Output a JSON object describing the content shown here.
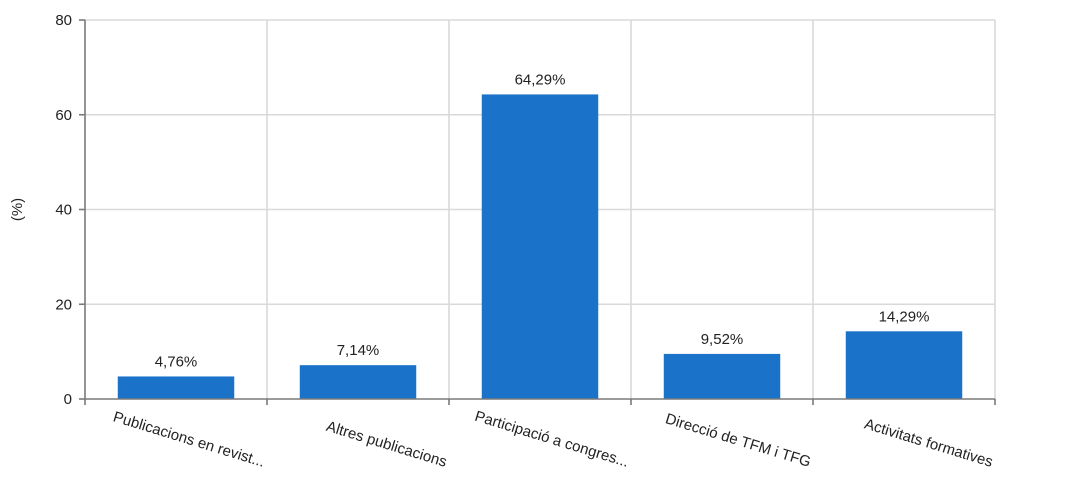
{
  "chart_data": {
    "type": "bar",
    "categories": [
      "Publicacions en revist...",
      "Altres publicacions",
      "Participació a congres...",
      "Direcció de TFM i TFG",
      "Activitats formatives"
    ],
    "values": [
      4.76,
      7.14,
      64.29,
      9.52,
      14.29
    ],
    "value_labels": [
      "4,76%",
      "7,14%",
      "64,29%",
      "9,52%",
      "14,29%"
    ],
    "title": "",
    "xlabel": "",
    "ylabel": "(%)",
    "ylim": [
      0,
      80
    ],
    "yticks": [
      0,
      20,
      40,
      60,
      80
    ],
    "ytick_labels": [
      "0",
      "20",
      "40",
      "60",
      "80"
    ],
    "grid": true,
    "bar_color": "#1a73c9",
    "grid_color": "#d9d9d9",
    "axis_color": "#7a7a7a"
  }
}
